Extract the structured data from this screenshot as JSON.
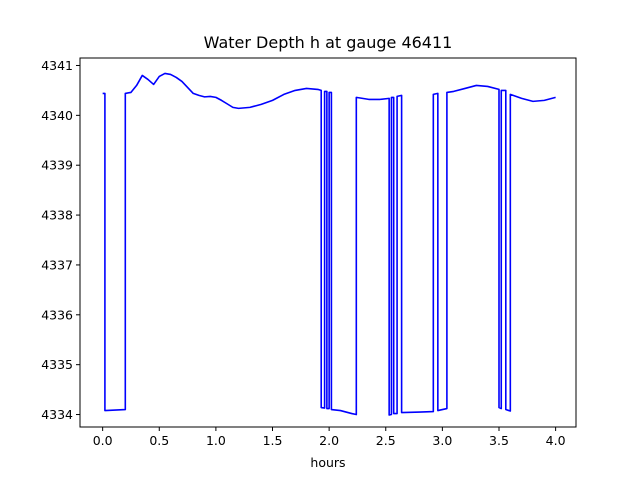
{
  "chart_data": {
    "type": "line",
    "title": "Water Depth h at gauge 46411",
    "xlabel": "hours",
    "ylabel": "",
    "xlim": [
      -0.2,
      4.18
    ],
    "ylim": [
      4333.75,
      4341.15
    ],
    "xticks": [
      0.0,
      0.5,
      1.0,
      1.5,
      2.0,
      2.5,
      3.0,
      3.5,
      4.0
    ],
    "xtick_labels": [
      "0.0",
      "0.5",
      "1.0",
      "1.5",
      "2.0",
      "2.5",
      "3.0",
      "3.5",
      "4.0"
    ],
    "yticks": [
      4334,
      4335,
      4336,
      4337,
      4338,
      4339,
      4340,
      4341
    ],
    "ytick_labels": [
      "4334",
      "4335",
      "4336",
      "4337",
      "4338",
      "4339",
      "4340",
      "4341"
    ],
    "grid": false,
    "legend": "none",
    "series": [
      {
        "color": "#0000ff",
        "points": [
          [
            0.0,
            4340.44
          ],
          [
            0.02,
            4340.44
          ],
          [
            0.02,
            4334.08
          ],
          [
            0.2,
            4334.1
          ],
          [
            0.2,
            4340.44
          ],
          [
            0.25,
            4340.46
          ],
          [
            0.3,
            4340.6
          ],
          [
            0.35,
            4340.8
          ],
          [
            0.4,
            4340.72
          ],
          [
            0.45,
            4340.62
          ],
          [
            0.5,
            4340.78
          ],
          [
            0.55,
            4340.84
          ],
          [
            0.6,
            4340.82
          ],
          [
            0.65,
            4340.76
          ],
          [
            0.7,
            4340.68
          ],
          [
            0.75,
            4340.56
          ],
          [
            0.8,
            4340.44
          ],
          [
            0.85,
            4340.4
          ],
          [
            0.9,
            4340.37
          ],
          [
            0.95,
            4340.38
          ],
          [
            1.0,
            4340.36
          ],
          [
            1.05,
            4340.3
          ],
          [
            1.1,
            4340.23
          ],
          [
            1.15,
            4340.16
          ],
          [
            1.2,
            4340.14
          ],
          [
            1.3,
            4340.16
          ],
          [
            1.4,
            4340.22
          ],
          [
            1.5,
            4340.3
          ],
          [
            1.6,
            4340.42
          ],
          [
            1.7,
            4340.5
          ],
          [
            1.8,
            4340.54
          ],
          [
            1.9,
            4340.52
          ],
          [
            1.93,
            4340.5
          ],
          [
            1.93,
            4334.14
          ],
          [
            1.96,
            4334.13
          ],
          [
            1.96,
            4340.48
          ],
          [
            1.98,
            4340.48
          ],
          [
            1.98,
            4334.12
          ],
          [
            2.0,
            4334.12
          ],
          [
            2.0,
            4340.46
          ],
          [
            2.02,
            4340.46
          ],
          [
            2.02,
            4334.1
          ],
          [
            2.1,
            4334.08
          ],
          [
            2.2,
            4334.02
          ],
          [
            2.24,
            4334.0
          ],
          [
            2.24,
            4340.36
          ],
          [
            2.35,
            4340.32
          ],
          [
            2.45,
            4340.32
          ],
          [
            2.53,
            4340.34
          ],
          [
            2.53,
            4333.99
          ],
          [
            2.55,
            4334.0
          ],
          [
            2.55,
            4340.36
          ],
          [
            2.57,
            4340.36
          ],
          [
            2.57,
            4334.02
          ],
          [
            2.6,
            4334.02
          ],
          [
            2.6,
            4340.38
          ],
          [
            2.64,
            4340.4
          ],
          [
            2.64,
            4334.04
          ],
          [
            2.8,
            4334.05
          ],
          [
            2.92,
            4334.06
          ],
          [
            2.92,
            4340.42
          ],
          [
            2.96,
            4340.44
          ],
          [
            2.96,
            4334.08
          ],
          [
            3.04,
            4334.12
          ],
          [
            3.04,
            4340.46
          ],
          [
            3.1,
            4340.48
          ],
          [
            3.2,
            4340.54
          ],
          [
            3.3,
            4340.6
          ],
          [
            3.4,
            4340.58
          ],
          [
            3.5,
            4340.52
          ],
          [
            3.5,
            4334.14
          ],
          [
            3.52,
            4334.12
          ],
          [
            3.52,
            4340.5
          ],
          [
            3.56,
            4340.5
          ],
          [
            3.56,
            4334.1
          ],
          [
            3.6,
            4334.07
          ],
          [
            3.6,
            4340.42
          ],
          [
            3.7,
            4340.34
          ],
          [
            3.8,
            4340.28
          ],
          [
            3.9,
            4340.3
          ],
          [
            4.0,
            4340.36
          ]
        ]
      }
    ]
  }
}
